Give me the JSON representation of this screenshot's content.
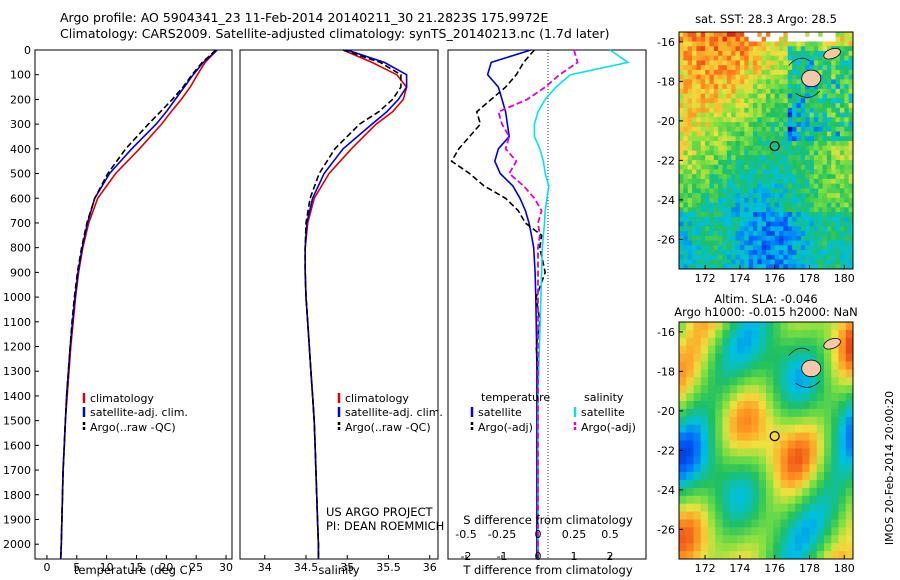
{
  "header": {
    "line1": "Argo profile: AO 5904341_23 11-Feb-2014 20140211_30 21.2823S 175.9972E",
    "line2": "Climatology: CARS2009. Satellite-adjusted climatology: synTS_20140213.nc (1.7d later)"
  },
  "depth_axis": {
    "ticks": [
      "0",
      "100",
      "200",
      "300",
      "400",
      "500",
      "600",
      "700",
      "800",
      "900",
      "1000",
      "1100",
      "1200",
      "1300",
      "1400",
      "1500",
      "1600",
      "1700",
      "1800",
      "1900",
      "2000"
    ]
  },
  "colors": {
    "climatology": "#e00000",
    "satellite": "#0000e0",
    "argo": "#000000",
    "sat_salinity": "#00e6e6",
    "argo_salinity": "#e000e0"
  },
  "chart_data": [
    {
      "type": "line",
      "id": "temperature",
      "xlabel": "temperature (deg C)",
      "ylabel": "",
      "xlim": [
        -2,
        31
      ],
      "ylim": [
        2060,
        0
      ],
      "xticks": [
        "0",
        "5",
        "10",
        "15",
        "20",
        "25",
        "30"
      ],
      "legend": [
        "climatology",
        "satellite-adj. clim.",
        "Argo(..raw -QC)"
      ],
      "depth": [
        0,
        50,
        100,
        150,
        200,
        250,
        300,
        400,
        500,
        600,
        700,
        800,
        900,
        1000,
        1100,
        1200,
        1300,
        1400,
        1500,
        1600,
        1700,
        1800,
        1900,
        2000,
        2060
      ],
      "series": [
        {
          "name": "climatology",
          "values": [
            28.5,
            26.5,
            25.2,
            24,
            22.5,
            20.8,
            19.2,
            15.5,
            11.5,
            8.5,
            7,
            6,
            5.3,
            4.8,
            4.4,
            4,
            3.7,
            3.4,
            3.1,
            2.9,
            2.7,
            2.6,
            2.5,
            2.4,
            2.3
          ]
        },
        {
          "name": "satellite-adj. clim.",
          "values": [
            28.5,
            26.2,
            24.5,
            23,
            21.5,
            20,
            18.3,
            14.2,
            10.5,
            8,
            6.8,
            5.9,
            5.2,
            4.7,
            4.3,
            3.9,
            3.6,
            3.3,
            3.1,
            2.9,
            2.7,
            2.6,
            2.5,
            2.4,
            2.3
          ]
        },
        {
          "name": "Argo(..raw -QC)",
          "values": [
            28.3,
            26,
            24.3,
            22.8,
            21,
            19,
            17,
            13.2,
            10.2,
            8,
            6.7,
            5.8,
            5.1,
            4.6,
            4.2,
            3.9,
            3.6,
            3.3,
            3.1,
            2.9,
            2.7,
            2.6,
            2.5,
            2.4,
            2.3
          ]
        }
      ]
    },
    {
      "type": "line",
      "id": "salinity",
      "xlabel": "salinity",
      "ylabel": "",
      "xlim": [
        33.7,
        36.1
      ],
      "ylim": [
        2060,
        0
      ],
      "xticks": [
        "34",
        "34.5",
        "35",
        "35.5",
        "36"
      ],
      "legend": [
        "climatology",
        "satellite-adj. clim.",
        "Argo(..raw -QC)"
      ],
      "depth": [
        0,
        50,
        100,
        150,
        200,
        250,
        300,
        400,
        500,
        600,
        700,
        800,
        900,
        1000,
        1100,
        1200,
        1300,
        1400,
        1500,
        1600,
        1700,
        1800,
        1900,
        2000,
        2060
      ],
      "series": [
        {
          "name": "climatology",
          "values": [
            34.95,
            35.3,
            35.6,
            35.72,
            35.68,
            35.55,
            35.35,
            35.05,
            34.78,
            34.6,
            34.52,
            34.49,
            34.49,
            34.5,
            34.52,
            34.54,
            34.56,
            34.58,
            34.6,
            34.61,
            34.62,
            34.63,
            34.64,
            34.65,
            34.65
          ]
        },
        {
          "name": "satellite-adj. clim.",
          "values": [
            35.0,
            35.45,
            35.72,
            35.72,
            35.62,
            35.48,
            35.3,
            34.95,
            34.72,
            34.58,
            34.51,
            34.49,
            34.49,
            34.5,
            34.52,
            34.54,
            34.56,
            34.58,
            34.6,
            34.61,
            34.62,
            34.63,
            34.64,
            34.65,
            34.65
          ]
        },
        {
          "name": "Argo(..raw -QC)",
          "values": [
            34.95,
            35.4,
            35.65,
            35.65,
            35.55,
            35.38,
            35.15,
            34.85,
            34.66,
            34.55,
            34.5,
            34.49,
            34.49,
            34.5,
            34.52,
            34.54,
            34.56,
            34.58,
            34.6,
            34.61,
            34.62,
            34.63,
            34.64,
            34.65,
            34.65
          ]
        }
      ]
    },
    {
      "type": "line",
      "id": "difference",
      "xlabel": "T difference from climatology",
      "xlabel_top": "S difference from climatology",
      "ylabel": "",
      "xlim": [
        -2.5,
        3
      ],
      "ylim": [
        2060,
        0
      ],
      "xticks": [
        "-2",
        "-1",
        "0",
        "1",
        "2"
      ],
      "sticks": [
        {
          "label": "-0.5",
          "x": -2
        },
        {
          "label": "-0.25",
          "x": -1
        },
        {
          "label": "0",
          "x": 0
        },
        {
          "label": "0.25",
          "x": 1
        },
        {
          "label": "0.5",
          "x": 2
        }
      ],
      "legend_headers": [
        "temperature",
        "salinity"
      ],
      "legend": [
        "satellite",
        "Argo(-adj)",
        "satellite",
        "Argo(-adj)"
      ],
      "depth": [
        0,
        50,
        100,
        150,
        200,
        250,
        300,
        350,
        400,
        450,
        500,
        550,
        600,
        650,
        700,
        750,
        800,
        900,
        1000,
        1100,
        1200,
        1300,
        1400,
        1500,
        1600,
        1700,
        1800,
        1900,
        2000,
        2060
      ],
      "series": [
        {
          "name": "temperature satellite",
          "values": [
            -0.2,
            -1.3,
            -1.4,
            -1.1,
            -1.0,
            -0.9,
            -0.85,
            -0.8,
            -1.1,
            -1.2,
            -1.05,
            -0.7,
            -0.5,
            -0.35,
            -0.25,
            -0.18,
            -0.12,
            -0.08,
            -0.06,
            -0.05,
            -0.04,
            -0.03,
            -0.03,
            -0.03,
            -0.03,
            -0.03,
            -0.03,
            -0.03,
            -0.03,
            -0.03
          ]
        },
        {
          "name": "temperature Argo(-adj)",
          "values": [
            -0.1,
            -0.4,
            -0.6,
            -0.9,
            -1.3,
            -1.7,
            -1.6,
            -1.9,
            -2.2,
            -2.4,
            -1.9,
            -1.5,
            -0.9,
            -0.55,
            -0.35,
            0.1,
            0.05,
            0.2,
            -0.05,
            0.05,
            -0.05,
            0.0,
            -0.02,
            0.0,
            -0.02,
            0.0,
            0.0,
            -0.01,
            0.0,
            0.0
          ]
        },
        {
          "name": "salinity satellite",
          "values": [
            2.0,
            2.5,
            0.9,
            0.5,
            0.2,
            0.0,
            -0.1,
            -0.1,
            0.05,
            0.15,
            0.2,
            0.3,
            0.25,
            0.2,
            0.18,
            0.15,
            0.12,
            0.1,
            0.08,
            0.06,
            0.04,
            0.02,
            0.0,
            0.0,
            0.0,
            0.0,
            0.0,
            0.0,
            0.0,
            0.0
          ]
        },
        {
          "name": "salinity Argo(-adj)",
          "values": [
            1.0,
            1.1,
            0.6,
            0.2,
            -0.3,
            -1.1,
            -1.0,
            -0.8,
            -0.9,
            -0.6,
            -0.8,
            -0.4,
            -0.1,
            0.1,
            0.0,
            0.05,
            0.0,
            0.0,
            0.0,
            0.0,
            0.0,
            0.0,
            0.0,
            0.0,
            0.0,
            0.0,
            0.0,
            0.0,
            0.0,
            0.0
          ]
        }
      ]
    }
  ],
  "maps": [
    {
      "id": "sst-map",
      "title": "sat. SST: 28.3  Argo: 28.5",
      "lon_ticks": [
        "172",
        "174",
        "176",
        "178",
        "180"
      ],
      "lat_ticks": [
        "-16",
        "-18",
        "-20",
        "-22",
        "-24",
        "-26"
      ],
      "lon_range": [
        170.5,
        180.5
      ],
      "lat_range": [
        -15.5,
        -27.5
      ],
      "profile_lon": 176.0,
      "profile_lat": -21.28
    },
    {
      "id": "sla-map",
      "title_line1": "Altim. SLA: -0.046",
      "title_line2": "Argo h1000: -0.015 h2000: NaN",
      "lon_ticks": [
        "172",
        "174",
        "176",
        "178",
        "180"
      ],
      "lat_ticks": [
        "-16",
        "-18",
        "-20",
        "-22",
        "-24",
        "-26"
      ],
      "lon_range": [
        170.5,
        180.5
      ],
      "lat_range": [
        -15.5,
        -27.5
      ],
      "profile_lon": 176.0,
      "profile_lat": -21.28
    }
  ],
  "credits": {
    "project": "US ARGO PROJECT",
    "pi": "PI: DEAN ROEMMICH"
  },
  "stamp": "IMOS 20-Feb-2014 20:00:20"
}
